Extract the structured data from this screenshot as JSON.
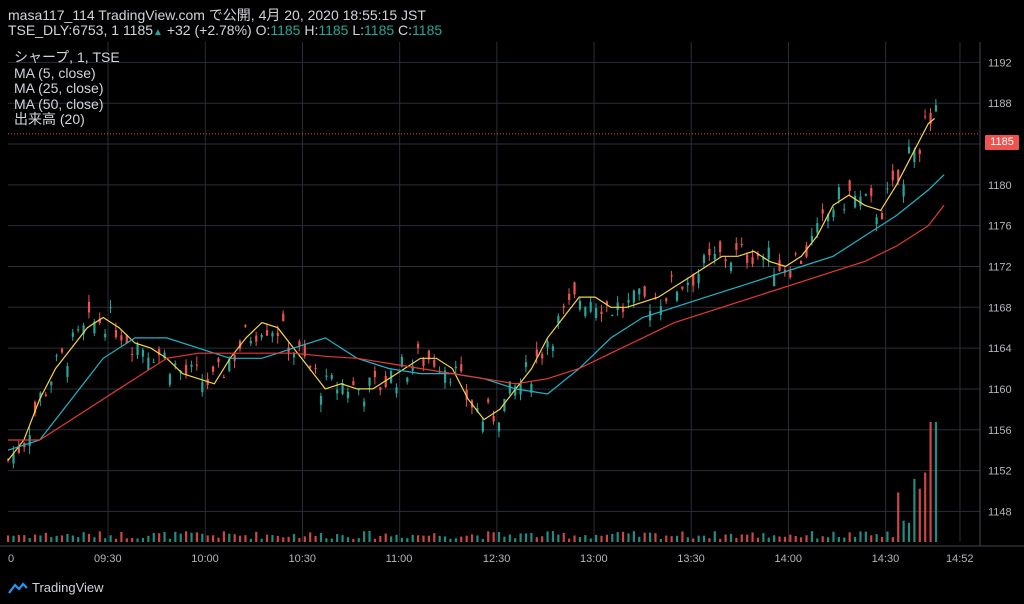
{
  "header": {
    "line1": "masa117_114 TradingView.com で公開, 4月 20, 2020 18:55:15 JST",
    "symbol": "TSE_DLY:6753, 1",
    "last": "1185",
    "change": "+32 (+2.78%)",
    "o_label": "O:",
    "o_val": "1185",
    "h_label": "H:",
    "h_val": "1185",
    "l_label": "L:",
    "l_val": "1185",
    "c_label": "C:",
    "c_val": "1185"
  },
  "legend": {
    "title": "シャープ, 1, TSE",
    "ma5": "MA (5, close)",
    "ma25": "MA (25, close)",
    "ma50": "MA (50, close)",
    "volume": "出来高 (20)"
  },
  "price_tag": "1185",
  "footer": {
    "brand": "TradingView"
  },
  "colors": {
    "up": "#26a69a",
    "down": "#ef5350",
    "ma5": "#f5d547",
    "ma25": "#1fb4c8",
    "ma50": "#e53935",
    "grid": "#2a2e39",
    "axis_text": "#b2b5be"
  },
  "chart_data": {
    "type": "line",
    "title": "",
    "xlabel": "",
    "ylabel": "",
    "ylim": [
      1145,
      1194
    ],
    "y_ticks": [
      1148,
      1152,
      1156,
      1160,
      1164,
      1168,
      1172,
      1176,
      1180,
      1184,
      1188,
      1192
    ],
    "x_ticks": [
      "0",
      "09:30",
      "10:00",
      "10:30",
      "11:00",
      "12:30",
      "13:00",
      "13:30",
      "14:00",
      "14:30",
      "14:52"
    ],
    "last_price": 1185,
    "series": [
      {
        "key": "ma5",
        "points": [
          [
            0,
            1153
          ],
          [
            5,
            1155
          ],
          [
            10,
            1159
          ],
          [
            15,
            1162
          ],
          [
            20,
            1164
          ],
          [
            25,
            1166
          ],
          [
            30,
            1167
          ],
          [
            35,
            1166
          ],
          [
            40,
            1164.5
          ],
          [
            45,
            1164
          ],
          [
            50,
            1163
          ],
          [
            55,
            1161.5
          ],
          [
            60,
            1161
          ],
          [
            65,
            1160.5
          ],
          [
            70,
            1163
          ],
          [
            75,
            1165
          ],
          [
            80,
            1166.5
          ],
          [
            85,
            1166
          ],
          [
            90,
            1164
          ],
          [
            95,
            1162
          ],
          [
            100,
            1160
          ],
          [
            105,
            1160.5
          ],
          [
            110,
            1160
          ],
          [
            115,
            1160
          ],
          [
            120,
            1161
          ],
          [
            125,
            1162
          ],
          [
            130,
            1163
          ],
          [
            135,
            1163
          ],
          [
            140,
            1162
          ],
          [
            145,
            1159
          ],
          [
            150,
            1157
          ],
          [
            155,
            1158
          ],
          [
            160,
            1160
          ],
          [
            165,
            1162
          ],
          [
            170,
            1165
          ],
          [
            175,
            1167
          ],
          [
            180,
            1169
          ],
          [
            185,
            1169
          ],
          [
            190,
            1168
          ],
          [
            195,
            1168
          ],
          [
            200,
            1168.5
          ],
          [
            205,
            1169
          ],
          [
            210,
            1170
          ],
          [
            215,
            1171
          ],
          [
            220,
            1172
          ],
          [
            225,
            1173
          ],
          [
            230,
            1173
          ],
          [
            235,
            1173.5
          ],
          [
            240,
            1172.5
          ],
          [
            245,
            1172
          ],
          [
            250,
            1173
          ],
          [
            255,
            1175
          ],
          [
            260,
            1178
          ],
          [
            265,
            1179
          ],
          [
            270,
            1178
          ],
          [
            275,
            1177.5
          ],
          [
            280,
            1180
          ],
          [
            285,
            1183
          ],
          [
            290,
            1186
          ],
          [
            292,
            1186.5
          ]
        ]
      },
      {
        "key": "ma25",
        "points": [
          [
            0,
            1154
          ],
          [
            10,
            1155
          ],
          [
            20,
            1159
          ],
          [
            30,
            1163
          ],
          [
            40,
            1165
          ],
          [
            50,
            1165
          ],
          [
            60,
            1164
          ],
          [
            70,
            1163
          ],
          [
            80,
            1163
          ],
          [
            90,
            1164
          ],
          [
            100,
            1165
          ],
          [
            110,
            1163
          ],
          [
            120,
            1162
          ],
          [
            130,
            1161.5
          ],
          [
            140,
            1161.5
          ],
          [
            150,
            1161
          ],
          [
            160,
            1160
          ],
          [
            170,
            1159.5
          ],
          [
            180,
            1162
          ],
          [
            190,
            1165
          ],
          [
            200,
            1167
          ],
          [
            210,
            1168
          ],
          [
            220,
            1169
          ],
          [
            230,
            1170
          ],
          [
            240,
            1171
          ],
          [
            250,
            1172
          ],
          [
            260,
            1173
          ],
          [
            270,
            1175
          ],
          [
            280,
            1177
          ],
          [
            290,
            1179.5
          ],
          [
            295,
            1181
          ]
        ]
      },
      {
        "key": "ma50",
        "points": [
          [
            0,
            1155
          ],
          [
            10,
            1155
          ],
          [
            20,
            1157
          ],
          [
            30,
            1159
          ],
          [
            40,
            1161
          ],
          [
            50,
            1163
          ],
          [
            60,
            1163.5
          ],
          [
            70,
            1163.5
          ],
          [
            80,
            1163.5
          ],
          [
            90,
            1163.5
          ],
          [
            100,
            1163.2
          ],
          [
            110,
            1163
          ],
          [
            120,
            1162.5
          ],
          [
            130,
            1162
          ],
          [
            140,
            1161.5
          ],
          [
            150,
            1161
          ],
          [
            160,
            1160.5
          ],
          [
            170,
            1161
          ],
          [
            180,
            1162
          ],
          [
            190,
            1163.5
          ],
          [
            200,
            1165
          ],
          [
            210,
            1166.5
          ],
          [
            220,
            1167.5
          ],
          [
            230,
            1168.5
          ],
          [
            240,
            1169.5
          ],
          [
            250,
            1170.5
          ],
          [
            260,
            1171.5
          ],
          [
            270,
            1172.5
          ],
          [
            280,
            1174
          ],
          [
            290,
            1176
          ],
          [
            295,
            1178
          ]
        ]
      }
    ]
  }
}
